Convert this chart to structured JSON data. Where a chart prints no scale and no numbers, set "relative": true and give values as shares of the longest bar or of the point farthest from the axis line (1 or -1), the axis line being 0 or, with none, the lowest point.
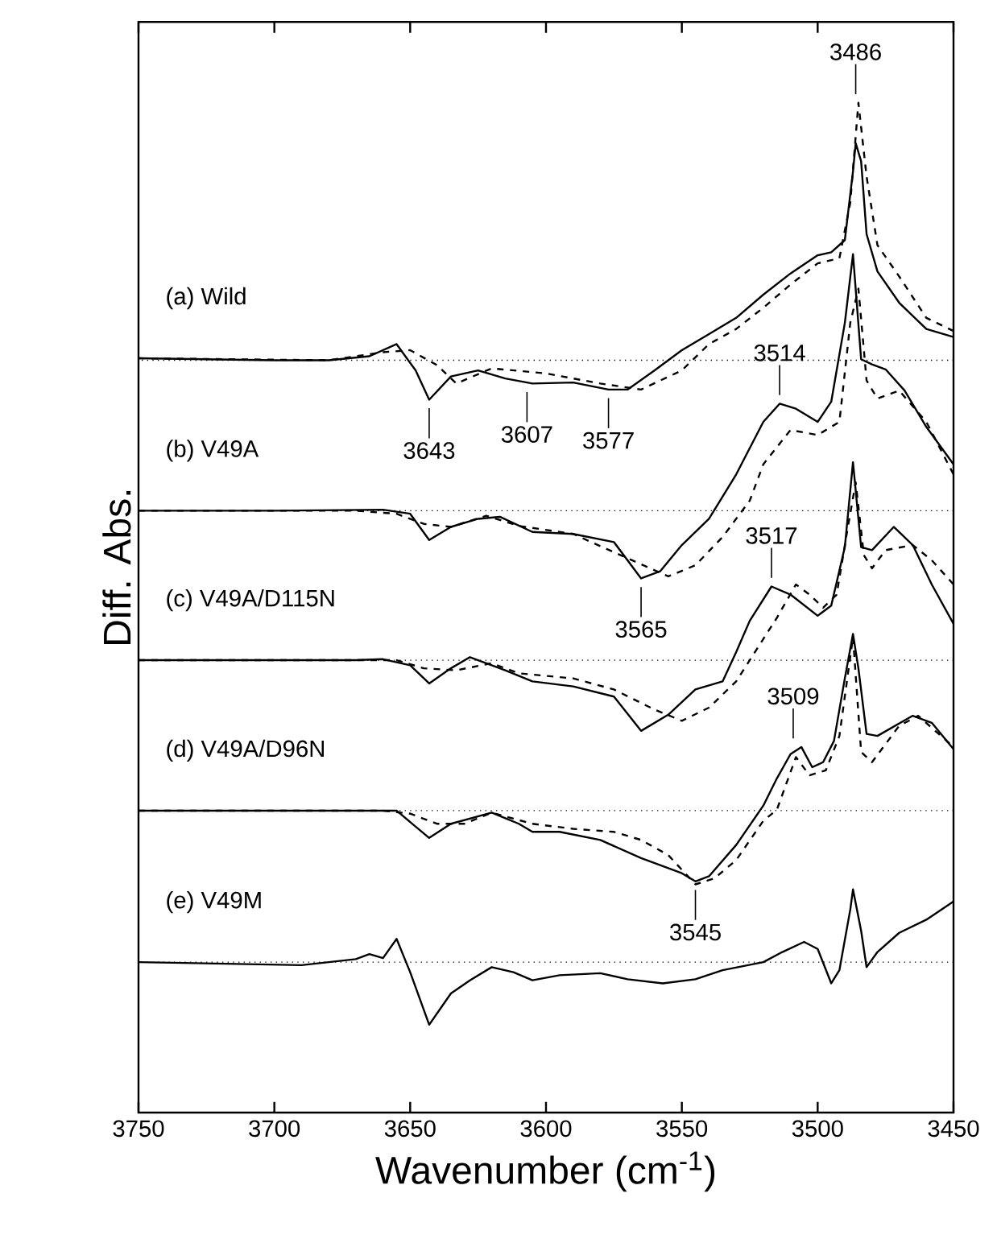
{
  "chart_data": {
    "type": "line",
    "relative": true,
    "xlabel": "Wavenumber (cm$^{-1}$)",
    "ylabel": "Diff. Abs.",
    "xlim": [
      3750,
      3450
    ],
    "xticks": [
      3750,
      3700,
      3650,
      3600,
      3550,
      3500,
      3450
    ],
    "series": [
      {
        "name": "(a) Wild",
        "color": "#000000",
        "line_style": "solid",
        "x": [
          3750,
          3700,
          3680,
          3665,
          3655,
          3648,
          3643,
          3635,
          3625,
          3615,
          3605,
          3590,
          3577,
          3570,
          3560,
          3550,
          3540,
          3530,
          3520,
          3510,
          3500,
          3495,
          3490,
          3487,
          3486,
          3484,
          3482,
          3478,
          3470,
          3460,
          3450
        ],
        "values": [
          0.747,
          0.745,
          0.745,
          0.749,
          0.761,
          0.735,
          0.706,
          0.729,
          0.735,
          0.727,
          0.722,
          0.723,
          0.716,
          0.716,
          0.735,
          0.755,
          0.771,
          0.787,
          0.81,
          0.831,
          0.849,
          0.852,
          0.864,
          0.932,
          0.96,
          0.942,
          0.87,
          0.833,
          0.802,
          0.776,
          0.768
        ]
      },
      {
        "color": "#000000",
        "line_style": "dashed",
        "x": [
          3750,
          3680,
          3660,
          3650,
          3640,
          3633,
          3620,
          3600,
          3580,
          3565,
          3550,
          3540,
          3530,
          3520,
          3510,
          3500,
          3492,
          3488,
          3485,
          3482,
          3478,
          3470,
          3460,
          3450
        ],
        "values": [
          0.747,
          0.745,
          0.753,
          0.755,
          0.74,
          0.722,
          0.737,
          0.732,
          0.722,
          0.716,
          0.735,
          0.761,
          0.776,
          0.797,
          0.82,
          0.841,
          0.846,
          0.901,
          1.0,
          0.927,
          0.859,
          0.828,
          0.787,
          0.774
        ]
      },
      {
        "name": "(b) V49A",
        "color": "#000000",
        "line_style": "solid",
        "x": [
          3750,
          3700,
          3660,
          3650,
          3643,
          3635,
          3625,
          3617,
          3605,
          3590,
          3575,
          3565,
          3558,
          3550,
          3540,
          3530,
          3525,
          3520,
          3514,
          3508,
          3500,
          3495,
          3490,
          3487,
          3484,
          3480,
          3475,
          3468,
          3460,
          3450
        ],
        "values": [
          0.596,
          0.596,
          0.597,
          0.593,
          0.567,
          0.58,
          0.588,
          0.59,
          0.575,
          0.573,
          0.565,
          0.529,
          0.536,
          0.562,
          0.588,
          0.632,
          0.658,
          0.684,
          0.702,
          0.697,
          0.684,
          0.704,
          0.782,
          0.85,
          0.746,
          0.741,
          0.736,
          0.715,
          0.679,
          0.642
        ]
      },
      {
        "color": "#000000",
        "line_style": "dashed",
        "x": [
          3750,
          3670,
          3655,
          3645,
          3635,
          3622,
          3610,
          3590,
          3570,
          3555,
          3545,
          3535,
          3525,
          3520,
          3510,
          3500,
          3492,
          3488,
          3485,
          3482,
          3478,
          3470,
          3460,
          3450
        ],
        "values": [
          0.596,
          0.596,
          0.593,
          0.583,
          0.58,
          0.591,
          0.581,
          0.573,
          0.549,
          0.531,
          0.542,
          0.57,
          0.606,
          0.642,
          0.676,
          0.671,
          0.684,
          0.782,
          0.816,
          0.725,
          0.707,
          0.715,
          0.684,
          0.632
        ]
      },
      {
        "name": "(c) V49A/D115N",
        "color": "#000000",
        "line_style": "solid",
        "x": [
          3750,
          3670,
          3660,
          3650,
          3643,
          3635,
          3628,
          3615,
          3605,
          3590,
          3575,
          3565,
          3555,
          3545,
          3535,
          3530,
          3525,
          3517,
          3510,
          3500,
          3495,
          3490,
          3487,
          3484,
          3480,
          3472,
          3465,
          3458,
          3450
        ],
        "values": [
          0.448,
          0.448,
          0.449,
          0.443,
          0.425,
          0.44,
          0.451,
          0.438,
          0.427,
          0.422,
          0.412,
          0.378,
          0.394,
          0.419,
          0.427,
          0.456,
          0.487,
          0.521,
          0.513,
          0.492,
          0.502,
          0.56,
          0.644,
          0.56,
          0.557,
          0.58,
          0.562,
          0.523,
          0.484
        ]
      },
      {
        "color": "#000000",
        "line_style": "dashed",
        "x": [
          3750,
          3670,
          3655,
          3645,
          3633,
          3620,
          3610,
          3590,
          3575,
          3560,
          3550,
          3540,
          3530,
          3520,
          3515,
          3508,
          3503,
          3498,
          3493,
          3489,
          3486,
          3483,
          3480,
          3475,
          3465,
          3458,
          3450
        ],
        "values": [
          0.448,
          0.448,
          0.448,
          0.44,
          0.438,
          0.445,
          0.435,
          0.43,
          0.419,
          0.399,
          0.388,
          0.401,
          0.427,
          0.469,
          0.49,
          0.523,
          0.513,
          0.5,
          0.513,
          0.578,
          0.624,
          0.552,
          0.539,
          0.557,
          0.562,
          0.547,
          0.523
        ]
      },
      {
        "name": "(d) V49A/D96N",
        "color": "#000000",
        "line_style": "solid",
        "x": [
          3750,
          3660,
          3655,
          3643,
          3635,
          3620,
          3610,
          3605,
          3595,
          3580,
          3565,
          3550,
          3545,
          3540,
          3530,
          3520,
          3515,
          3510,
          3506,
          3502,
          3498,
          3494,
          3490,
          3487,
          3485,
          3482,
          3478,
          3465,
          3458,
          3450
        ],
        "values": [
          0.299,
          0.299,
          0.299,
          0.272,
          0.286,
          0.297,
          0.286,
          0.278,
          0.278,
          0.27,
          0.252,
          0.237,
          0.229,
          0.234,
          0.265,
          0.304,
          0.331,
          0.355,
          0.362,
          0.342,
          0.347,
          0.368,
          0.43,
          0.474,
          0.44,
          0.375,
          0.373,
          0.393,
          0.386,
          0.36
        ]
      },
      {
        "color": "#000000",
        "line_style": "dashed",
        "x": [
          3750,
          3660,
          3650,
          3640,
          3630,
          3620,
          3605,
          3590,
          3575,
          3565,
          3555,
          3545,
          3538,
          3530,
          3520,
          3515,
          3508,
          3503,
          3497,
          3492,
          3487,
          3484,
          3480,
          3470,
          3463,
          3450
        ],
        "values": [
          0.299,
          0.299,
          0.296,
          0.286,
          0.286,
          0.297,
          0.286,
          0.281,
          0.278,
          0.27,
          0.255,
          0.226,
          0.232,
          0.25,
          0.289,
          0.3,
          0.352,
          0.334,
          0.339,
          0.373,
          0.471,
          0.357,
          0.347,
          0.383,
          0.393,
          0.362
        ]
      },
      {
        "name": "(e) V49M",
        "color": "#000000",
        "line_style": "solid",
        "x": [
          3750,
          3690,
          3680,
          3670,
          3665,
          3660,
          3655,
          3650,
          3643,
          3635,
          3628,
          3620,
          3612,
          3605,
          3595,
          3580,
          3570,
          3557,
          3545,
          3535,
          3520,
          3513,
          3505,
          3500,
          3495,
          3492,
          3488,
          3487,
          3484,
          3482,
          3478,
          3470,
          3460,
          3450
        ],
        "values": [
          0.149,
          0.146,
          0.149,
          0.152,
          0.157,
          0.153,
          0.172,
          0.139,
          0.087,
          0.118,
          0.131,
          0.144,
          0.139,
          0.131,
          0.136,
          0.138,
          0.132,
          0.128,
          0.132,
          0.141,
          0.149,
          0.159,
          0.169,
          0.162,
          0.128,
          0.141,
          0.201,
          0.221,
          0.18,
          0.144,
          0.159,
          0.178,
          0.191,
          0.209
        ]
      }
    ],
    "ref_lines": [
      {
        "axis": "y",
        "value": 0.745,
        "line_style": "dotted",
        "color": "#000000"
      },
      {
        "axis": "y",
        "value": 0.596,
        "line_style": "dotted",
        "color": "#000000"
      },
      {
        "axis": "y",
        "value": 0.448,
        "line_style": "dotted",
        "color": "#000000"
      },
      {
        "axis": "y",
        "value": 0.299,
        "line_style": "dotted",
        "color": "#000000"
      },
      {
        "axis": "y",
        "value": 0.149,
        "line_style": "dotted",
        "color": "#000000"
      }
    ],
    "annotations": [
      {
        "text": "3486",
        "x": 3486,
        "y": 1.0
      },
      {
        "text": "3514",
        "x": 3514,
        "y": 0.702
      },
      {
        "text": "3643",
        "x": 3643,
        "y": 0.706
      },
      {
        "text": "3607",
        "x": 3607,
        "y": 0.722
      },
      {
        "text": "3577",
        "x": 3577,
        "y": 0.716
      },
      {
        "text": "3565",
        "x": 3565,
        "y": 0.529
      },
      {
        "text": "3517",
        "x": 3517,
        "y": 0.521
      },
      {
        "text": "3509",
        "x": 3509,
        "y": 0.362
      },
      {
        "text": "3545",
        "x": 3545,
        "y": 0.229
      }
    ]
  }
}
